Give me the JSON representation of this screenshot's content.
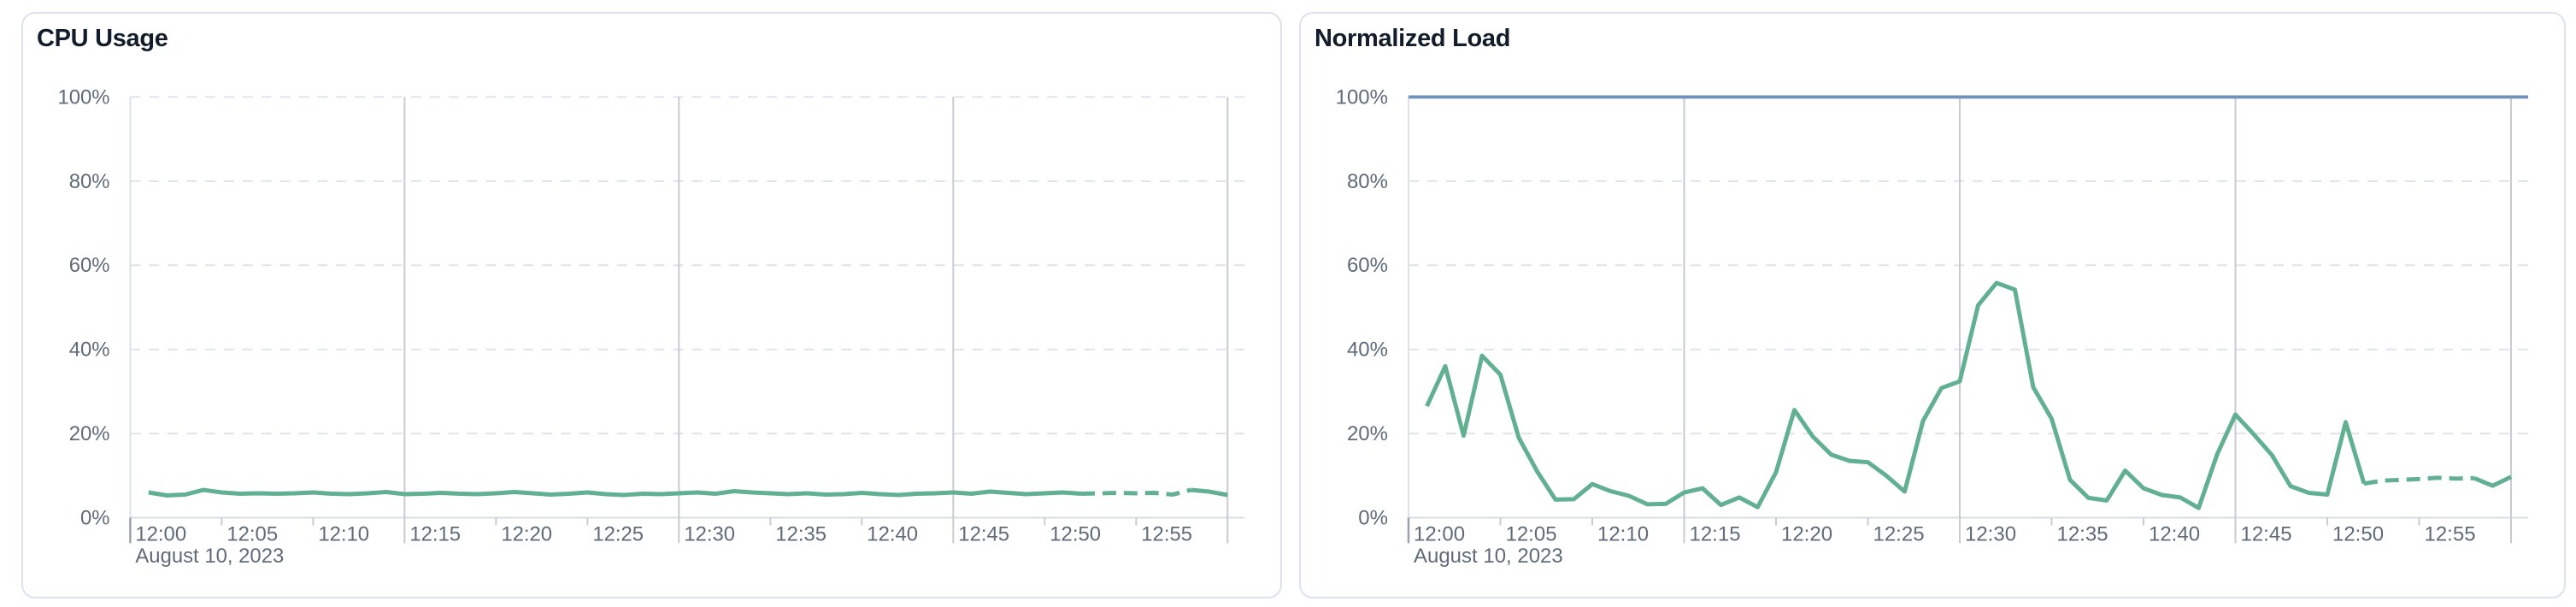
{
  "cards": [
    {
      "title": "CPU Usage",
      "chart_data": {
        "type": "line",
        "title": "CPU Usage",
        "x_axis": {
          "start": "12:00",
          "end": "13:00",
          "date_label": "August 10, 2023",
          "tick_labels": [
            "12:00",
            "12:05",
            "12:10",
            "12:15",
            "12:20",
            "12:25",
            "12:30",
            "12:35",
            "12:40",
            "12:45",
            "12:50",
            "12:55"
          ],
          "major_gridline_times": [
            "12:15",
            "12:30",
            "12:45",
            "13:00"
          ]
        },
        "y_axis": {
          "tick_labels": [
            "0%",
            "20%",
            "40%",
            "60%",
            "80%",
            "100%"
          ],
          "min": 0,
          "max": 100,
          "unit": "%"
        },
        "grid": "dashed-horizontal",
        "legend": "none",
        "series": [
          {
            "name": "cpu-usage",
            "color": "#61b092",
            "first_minute": 1,
            "minutes_per_point": 1,
            "dashed_from_minute": 52,
            "dashed_to_minute": 58,
            "values": [
              6.0,
              5.3,
              5.5,
              6.6,
              6.0,
              5.7,
              5.8,
              5.7,
              5.8,
              6.0,
              5.7,
              5.6,
              5.8,
              6.1,
              5.6,
              5.7,
              5.9,
              5.7,
              5.6,
              5.8,
              6.1,
              5.8,
              5.5,
              5.7,
              6.0,
              5.6,
              5.4,
              5.7,
              5.6,
              5.8,
              6.0,
              5.7,
              6.3,
              6.0,
              5.8,
              5.6,
              5.8,
              5.5,
              5.6,
              5.9,
              5.6,
              5.4,
              5.7,
              5.8,
              6.0,
              5.7,
              6.2,
              5.9,
              5.6,
              5.8,
              6.0,
              5.7,
              5.8,
              5.9,
              5.8,
              5.9,
              5.5,
              6.6,
              6.2,
              5.4
            ]
          }
        ]
      }
    },
    {
      "title": "Normalized Load",
      "chart_data": {
        "type": "line",
        "title": "Normalized Load",
        "x_axis": {
          "start": "12:00",
          "end": "13:00",
          "date_label": "August 10, 2023",
          "tick_labels": [
            "12:00",
            "12:05",
            "12:10",
            "12:15",
            "12:20",
            "12:25",
            "12:30",
            "12:35",
            "12:40",
            "12:45",
            "12:50",
            "12:55"
          ],
          "major_gridline_times": [
            "12:15",
            "12:30",
            "12:45",
            "13:00"
          ]
        },
        "y_axis": {
          "tick_labels": [
            "0%",
            "20%",
            "40%",
            "60%",
            "80%",
            "100%"
          ],
          "min": 0,
          "max": 100,
          "unit": "%"
        },
        "grid": "dashed-horizontal",
        "legend": "none",
        "series": [
          {
            "name": "normalized-load",
            "color": "#61b092",
            "first_minute": 1,
            "minutes_per_point": 1,
            "dashed_from_minute": 52,
            "dashed_to_minute": 58,
            "values": [
              26.5,
              36.0,
              19.5,
              38.5,
              34.0,
              19.0,
              11.0,
              4.3,
              4.4,
              8.0,
              6.3,
              5.2,
              3.2,
              3.3,
              6.0,
              7.0,
              3.0,
              4.8,
              2.5,
              10.8,
              25.6,
              19.3,
              15.0,
              13.5,
              13.2,
              10.0,
              6.2,
              23.0,
              30.8,
              32.4,
              50.5,
              55.8,
              54.2,
              31.0,
              23.5,
              9.0,
              4.7,
              4.1,
              11.2,
              7.0,
              5.4,
              4.8,
              2.3,
              15.0,
              24.5,
              19.8,
              14.8,
              7.5,
              5.9,
              5.5,
              22.7,
              8.1,
              8.8,
              9.0,
              9.2,
              9.5,
              9.3,
              9.4,
              7.6,
              9.7
            ]
          },
          {
            "name": "limit-line",
            "color": "#6e90ba",
            "constant_value": 100
          }
        ]
      }
    }
  ]
}
